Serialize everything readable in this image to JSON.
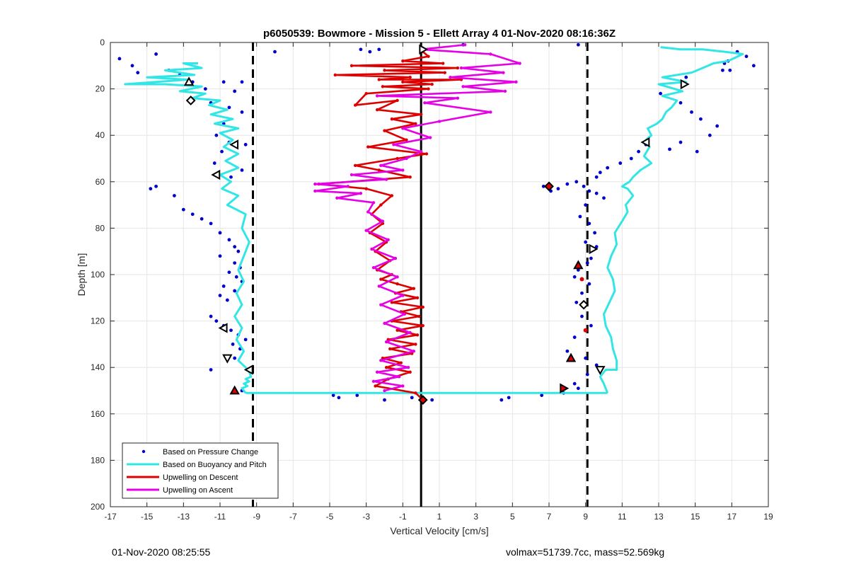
{
  "chart_data": {
    "type": "scatter",
    "title": "p6050539: Bowmore - Mission 5 - Ellett Array 4 01-Nov-2020 08:16:36Z",
    "xlabel": "Vertical Velocity [cm/s]",
    "ylabel": "Depth [m]",
    "xlim": [
      -17,
      19
    ],
    "ylim": [
      0,
      200
    ],
    "y_reversed": true,
    "grid": true,
    "legend_position": "bottom-left",
    "xticks": [
      -17,
      -15,
      -13,
      -11,
      -9,
      -7,
      -5,
      -3,
      -1,
      1,
      3,
      5,
      7,
      9,
      11,
      13,
      15,
      17,
      19
    ],
    "yticks": [
      0,
      20,
      40,
      60,
      80,
      100,
      120,
      140,
      160,
      180,
      200
    ],
    "reference_lines": [
      {
        "x": -9.2,
        "style": "dashed",
        "color": "#000000"
      },
      {
        "x": 0,
        "style": "solid",
        "color": "#000000"
      },
      {
        "x": 9.1,
        "style": "dashed",
        "color": "#000000"
      }
    ],
    "series": [
      {
        "name": "Based on Pressure Change",
        "kind": "points",
        "color": "#0000cc",
        "x": [
          -16.5,
          -15.8,
          -15.5,
          -14.5,
          -13.8,
          -13.2,
          -12.8,
          -12.5,
          -11.8,
          -10.8,
          -10.2,
          -9.8,
          -11.5,
          -10.5,
          -9.8,
          -10.8,
          -11.2,
          -10.5,
          -9.6,
          -10.9,
          -11.3,
          -9.8,
          -10.4,
          -14.8,
          -14.5,
          -13.5,
          -13.0,
          -12.5,
          -12.0,
          -11.5,
          -11.0,
          -10.5,
          -10.2,
          -10.0,
          -11.0,
          -10.2,
          -9.9,
          -10.5,
          -10.1,
          -9.8,
          -10.8,
          -10.2,
          -11.0,
          -10.6,
          -11.5,
          -11.2,
          -10.8,
          -10.4,
          -10.0,
          -9.6,
          -10.3,
          -9.9,
          -10.2,
          -11.5,
          -9.8,
          -4.8,
          -4.5,
          -3.5,
          -2.0,
          -0.5,
          0.6,
          4.4,
          4.8,
          6.6,
          7.8,
          -8.0,
          -3.3,
          -2.8,
          -2.3,
          2.3,
          8.6,
          17.3,
          17.8,
          16.8,
          18.2,
          16.5,
          14.5,
          13.1,
          14.2,
          14.8,
          15.3,
          16.2,
          15.8,
          14.2,
          13.6,
          15.1,
          16.6,
          16.9,
          12.3,
          11.9,
          11.5,
          10.9,
          10.2,
          9.8,
          9.6,
          6.7,
          7.1,
          7.5,
          8.0,
          8.5,
          8.9,
          9.2,
          9.6,
          10.0,
          9.0,
          8.7,
          9.2,
          9.5,
          9.0,
          9.6,
          9.3,
          9.1,
          8.6,
          8.4,
          9.2,
          8.8,
          8.5,
          8.8,
          9.3,
          8.4,
          8.0,
          9.0,
          9.6,
          9.1,
          8.4,
          8.6
        ],
        "y": [
          7,
          10,
          13,
          5,
          12,
          14,
          18,
          17,
          20,
          17,
          21,
          17,
          26,
          28,
          30,
          35,
          40,
          43,
          44,
          47,
          52,
          55,
          58,
          63,
          62,
          66,
          72,
          74,
          76,
          78,
          82,
          85,
          88,
          90,
          92,
          95,
          97,
          99,
          101,
          103,
          105,
          107,
          109,
          111,
          118,
          120,
          122,
          124,
          126,
          128,
          130,
          132,
          136,
          141,
          150,
          152,
          153,
          152,
          154,
          153,
          154,
          154,
          153,
          152,
          151,
          4,
          3,
          4,
          3,
          1,
          1,
          4,
          6,
          8,
          10,
          12,
          15,
          22,
          26,
          30,
          33,
          36,
          40,
          43,
          46,
          47,
          9,
          12,
          44,
          47,
          50,
          52,
          54,
          56,
          58,
          62,
          64,
          63,
          61,
          60,
          62,
          64,
          65,
          67,
          70,
          75,
          78,
          82,
          86,
          88,
          93,
          95,
          98,
          101,
          104,
          108,
          112,
          118,
          122,
          127,
          133,
          136,
          139,
          143,
          147,
          149
        ]
      },
      {
        "name": "Based on Buoyancy and Pitch",
        "kind": "line",
        "color": "#33e6e6",
        "segments": [
          {
            "x": [
              -12.2,
              -13.0,
              -12.0,
              -14.0,
              -13.2,
              -12.4,
              -15.0,
              -12.8,
              -16.2,
              -14.0,
              -12.0,
              -13.2,
              -11.8,
              -12.5,
              -11.0,
              -11.6,
              -10.6,
              -11.5,
              -10.3,
              -11.3,
              -10.0,
              -11.0,
              -10.3,
              -10.8,
              -10.0,
              -10.7,
              -10.0,
              -11.0,
              -10.4,
              -10.9,
              -10.0,
              -10.6,
              -9.6,
              -9.8,
              -9.4,
              -9.7,
              -10.0,
              -9.7,
              -10.1,
              -9.8,
              -10.2,
              -9.8,
              -10.1,
              -9.7,
              -10.0,
              -9.6,
              -9.4,
              -9.3,
              -9.6,
              -9.4,
              -9.7,
              -9.5,
              -9.8,
              -9.6
            ],
            "y": [
              9,
              9,
              11,
              12,
              13,
              14,
              15,
              16,
              18,
              18,
              19,
              21,
              22,
              24,
              25,
              27,
              29,
              31,
              33,
              35,
              37,
              39,
              42,
              45,
              48,
              51,
              54,
              57,
              60,
              63,
              66,
              70,
              74,
              80,
              86,
              92,
              98,
              103,
              108,
              113,
              118,
              123,
              128,
              133,
              137,
              140,
              142,
              144,
              145,
              146,
              147,
              148,
              149,
              151
            ]
          },
          {
            "x": [
              -9.6,
              10.2
            ],
            "y": [
              151,
              151
            ]
          },
          {
            "x": [
              10.2,
              10.0,
              9.8,
              10.1,
              10.7,
              10.7,
              10.5,
              10.4,
              10.1,
              10.0,
              10.3,
              10.6,
              10.5,
              10.2,
              10.4,
              10.7,
              10.6,
              11.0,
              11.3,
              11.2,
              11.6,
              11.3,
              11.0,
              11.4,
              11.6,
              12.0,
              12.6,
              12.2,
              12.5,
              12.3,
              12.6,
              12.4,
              12.9,
              13.2,
              13.4,
              13.7,
              14.0,
              13.2,
              14.3,
              13.0,
              14.5,
              13.2,
              14.8,
              15.4,
              16.0,
              16.8,
              17.6,
              16.6,
              15.4,
              14.2,
              13.1
            ],
            "y": [
              151,
              147,
              144,
              141,
              141,
              137,
              132,
              127,
              122,
              117,
              112,
              107,
              102,
              97,
              92,
              87,
              82,
              77,
              73,
              70,
              66,
              63,
              62,
              60,
              58,
              55,
              52,
              49,
              45,
              42,
              40,
              37,
              35,
              33,
              30,
              28,
              25,
              23,
              21,
              18,
              17,
              15,
              13,
              11,
              9,
              8,
              5,
              4,
              3,
              3,
              2
            ]
          }
        ]
      },
      {
        "name": "Upwelling on Descent",
        "kind": "line",
        "color": "#dd0000",
        "x": [
          0.1,
          0.4,
          -1.0,
          1.2,
          -3.8,
          2.0,
          -2.0,
          1.3,
          -4.7,
          -0.6,
          -2.3,
          2.2,
          -1.0,
          0.6,
          -2.1,
          0.4,
          -3.0,
          -3.6,
          -1.3,
          -2.4,
          0.0,
          -1.6,
          -0.3,
          -2.0,
          -0.8,
          -2.9,
          0.3,
          -1.3,
          -3.6,
          -2.3,
          -0.6,
          -5.6,
          -3.0,
          -1.6,
          -2.2,
          -2.7,
          -2.1,
          -2.8,
          -1.9,
          -2.5,
          -1.7,
          -2.4,
          -1.6,
          -2.2,
          -1.3,
          -0.4,
          -1.4,
          -0.2,
          -1.6,
          0.1,
          -1.1,
          -0.1,
          -1.6,
          0.1,
          -1.3,
          -0.2,
          -1.8,
          -0.3,
          -1.7,
          -0.5,
          -2.1,
          -1.1,
          -1.9,
          -0.6,
          -1.8,
          -2.5,
          -0.3,
          0.1
        ],
        "y": [
          4,
          6,
          8,
          9,
          10,
          11,
          12,
          13,
          14,
          15,
          16,
          16,
          17,
          18,
          19,
          20,
          22,
          27,
          25,
          29,
          31,
          33,
          35,
          38,
          42,
          45,
          48,
          50,
          53,
          55,
          58,
          61,
          63,
          66,
          70,
          74,
          78,
          82,
          86,
          90,
          94,
          98,
          100,
          102,
          104,
          106,
          108,
          110,
          112,
          114,
          116,
          118,
          120,
          122,
          124,
          126,
          128,
          130,
          132,
          134,
          136,
          138,
          140,
          142,
          145,
          148,
          151,
          154
        ]
      },
      {
        "name": "Upwelling on Ascent",
        "kind": "line",
        "color": "#e600e6",
        "x": [
          2.4,
          0.0,
          3.8,
          5.4,
          2.2,
          4.5,
          1.6,
          5.2,
          2.3,
          4.6,
          -2.4,
          2.0,
          0.2,
          3.8,
          1.0,
          -1.0,
          0.5,
          -1.5,
          0.0,
          -0.8,
          -2.2,
          -1.0,
          -3.8,
          -1.9,
          -5.8,
          -4.0,
          -5.8,
          -3.3,
          -4.6,
          -2.6,
          -2.9,
          -2.1,
          -3.0,
          -1.8,
          -2.7,
          -1.4,
          -2.6,
          -1.3,
          -2.3,
          -1.0,
          -2.2,
          -0.9,
          -2.0,
          -0.6,
          -1.9,
          -0.4,
          -2.2,
          -0.7,
          -2.4,
          -1.2,
          -2.6,
          -1.0,
          -2.0
        ],
        "y": [
          1,
          3,
          5,
          9,
          11,
          13,
          15,
          17,
          19,
          21,
          23,
          24,
          26,
          30,
          34,
          37,
          41,
          44,
          47,
          50,
          53,
          55,
          57,
          59,
          61,
          62,
          64,
          65,
          67,
          69,
          73,
          77,
          81,
          85,
          89,
          93,
          97,
          101,
          105,
          109,
          113,
          117,
          121,
          125,
          129,
          133,
          137,
          140,
          142,
          144,
          146,
          148,
          150
        ]
      }
    ],
    "markers": [
      {
        "x": -12.7,
        "y": 17,
        "shape": "triangle-up",
        "fill": "#ffffff"
      },
      {
        "x": -12.6,
        "y": 25,
        "shape": "diamond",
        "fill": "#ffffff"
      },
      {
        "x": -10.2,
        "y": 44,
        "shape": "triangle-left",
        "fill": "#ffffff"
      },
      {
        "x": -11.2,
        "y": 57,
        "shape": "triangle-left",
        "fill": "#ffffff"
      },
      {
        "x": -10.8,
        "y": 123,
        "shape": "triangle-left",
        "fill": "#ffffff"
      },
      {
        "x": -10.6,
        "y": 136,
        "shape": "triangle-down",
        "fill": "#ffffff"
      },
      {
        "x": -9.4,
        "y": 141,
        "shape": "triangle-left",
        "fill": "#ffffff"
      },
      {
        "x": -10.2,
        "y": 150,
        "shape": "triangle-up",
        "fill": "#dd0000"
      },
      {
        "x": 0.1,
        "y": 3,
        "shape": "triangle-right",
        "fill": "#ffffff"
      },
      {
        "x": 0.1,
        "y": 154,
        "shape": "diamond",
        "fill": "#dd0000"
      },
      {
        "x": 14.4,
        "y": 18,
        "shape": "triangle-right",
        "fill": "#ffffff"
      },
      {
        "x": 12.3,
        "y": 43,
        "shape": "triangle-left",
        "fill": "#ffffff"
      },
      {
        "x": 7.0,
        "y": 62,
        "shape": "diamond",
        "fill": "#dd0000"
      },
      {
        "x": 9.4,
        "y": 89,
        "shape": "triangle-right",
        "fill": "#ffffff"
      },
      {
        "x": 8.6,
        "y": 96,
        "shape": "triangle-up",
        "fill": "#dd0000"
      },
      {
        "x": 8.9,
        "y": 113,
        "shape": "diamond",
        "fill": "#ffffff"
      },
      {
        "x": 8.2,
        "y": 136,
        "shape": "triangle-up",
        "fill": "#dd0000"
      },
      {
        "x": 9.8,
        "y": 141,
        "shape": "triangle-down",
        "fill": "#ffffff"
      },
      {
        "x": 7.8,
        "y": 149,
        "shape": "triangle-right",
        "fill": "#dd0000"
      }
    ],
    "red_dots": [
      {
        "x": 8.8,
        "y": 102
      },
      {
        "x": 9.0,
        "y": 124
      }
    ],
    "legend": [
      {
        "label": "Based on Pressure Change",
        "style": "dot",
        "color": "#0000cc"
      },
      {
        "label": "Based on Buoyancy and Pitch",
        "style": "line",
        "color": "#33e6e6"
      },
      {
        "label": "Upwelling on Descent",
        "style": "line",
        "color": "#dd0000"
      },
      {
        "label": "Upwelling on Ascent",
        "style": "line",
        "color": "#e600e6"
      }
    ]
  },
  "footer": {
    "left": "01-Nov-2020 08:25:55",
    "right": "volmax=51739.7cc, mass=52.569kg"
  }
}
